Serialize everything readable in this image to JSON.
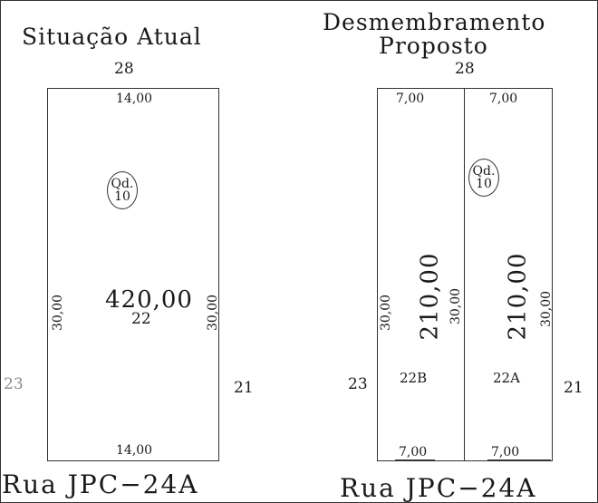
{
  "current": {
    "title": "Situação Atual",
    "top_neighbor": "28",
    "left_neighbor": "23",
    "right_neighbor": "21",
    "top_width": "14,00",
    "bottom_width": "14,00",
    "left_depth": "30,00",
    "right_depth": "30,00",
    "block_label": "Qd.",
    "block_number": "10",
    "area": "420,00",
    "lot": "22",
    "street": "Rua JPC−24A"
  },
  "proposed": {
    "title_line1": "Desmembramento",
    "title_line2": "Proposto",
    "top_neighbor": "28",
    "left_neighbor": "23",
    "right_neighbor": "21",
    "lot_b": {
      "top_width": "7,00",
      "bottom_width": "7,00",
      "left_depth": "30,00",
      "area": "210,00",
      "lot": "22B"
    },
    "lot_a": {
      "top_width": "7,00",
      "bottom_width": "7,00",
      "divider_depth": "30,00",
      "right_depth": "30,00",
      "area": "210,00",
      "lot": "22A"
    },
    "block_label": "Qd.",
    "block_number": "10",
    "street": "Rua JPC−24A"
  }
}
